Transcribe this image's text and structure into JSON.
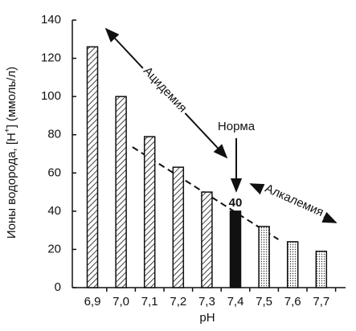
{
  "chart_data": {
    "type": "bar",
    "categories": [
      "6,9",
      "7,0",
      "7,1",
      "7,2",
      "7,3",
      "7,4",
      "7,5",
      "7,6",
      "7,7"
    ],
    "values": [
      126,
      100,
      79,
      63,
      50,
      40,
      32,
      24,
      19
    ],
    "bar_patterns": [
      "hatch",
      "hatch",
      "hatch",
      "hatch",
      "hatch",
      "solid",
      "dots",
      "dots",
      "dots"
    ],
    "color": "#111111",
    "ylim": [
      0,
      140
    ],
    "yticks": [
      0,
      20,
      40,
      60,
      80,
      100,
      120,
      140
    ],
    "x_label": "pH",
    "y_label": {
      "before": "Ионы водорода, [H",
      "sup": "+",
      "after": "] (ммоль/л)"
    },
    "annotations": [
      "Ацидемия",
      "Норма",
      "Алкалемия"
    ],
    "trend_line": "dashed"
  }
}
